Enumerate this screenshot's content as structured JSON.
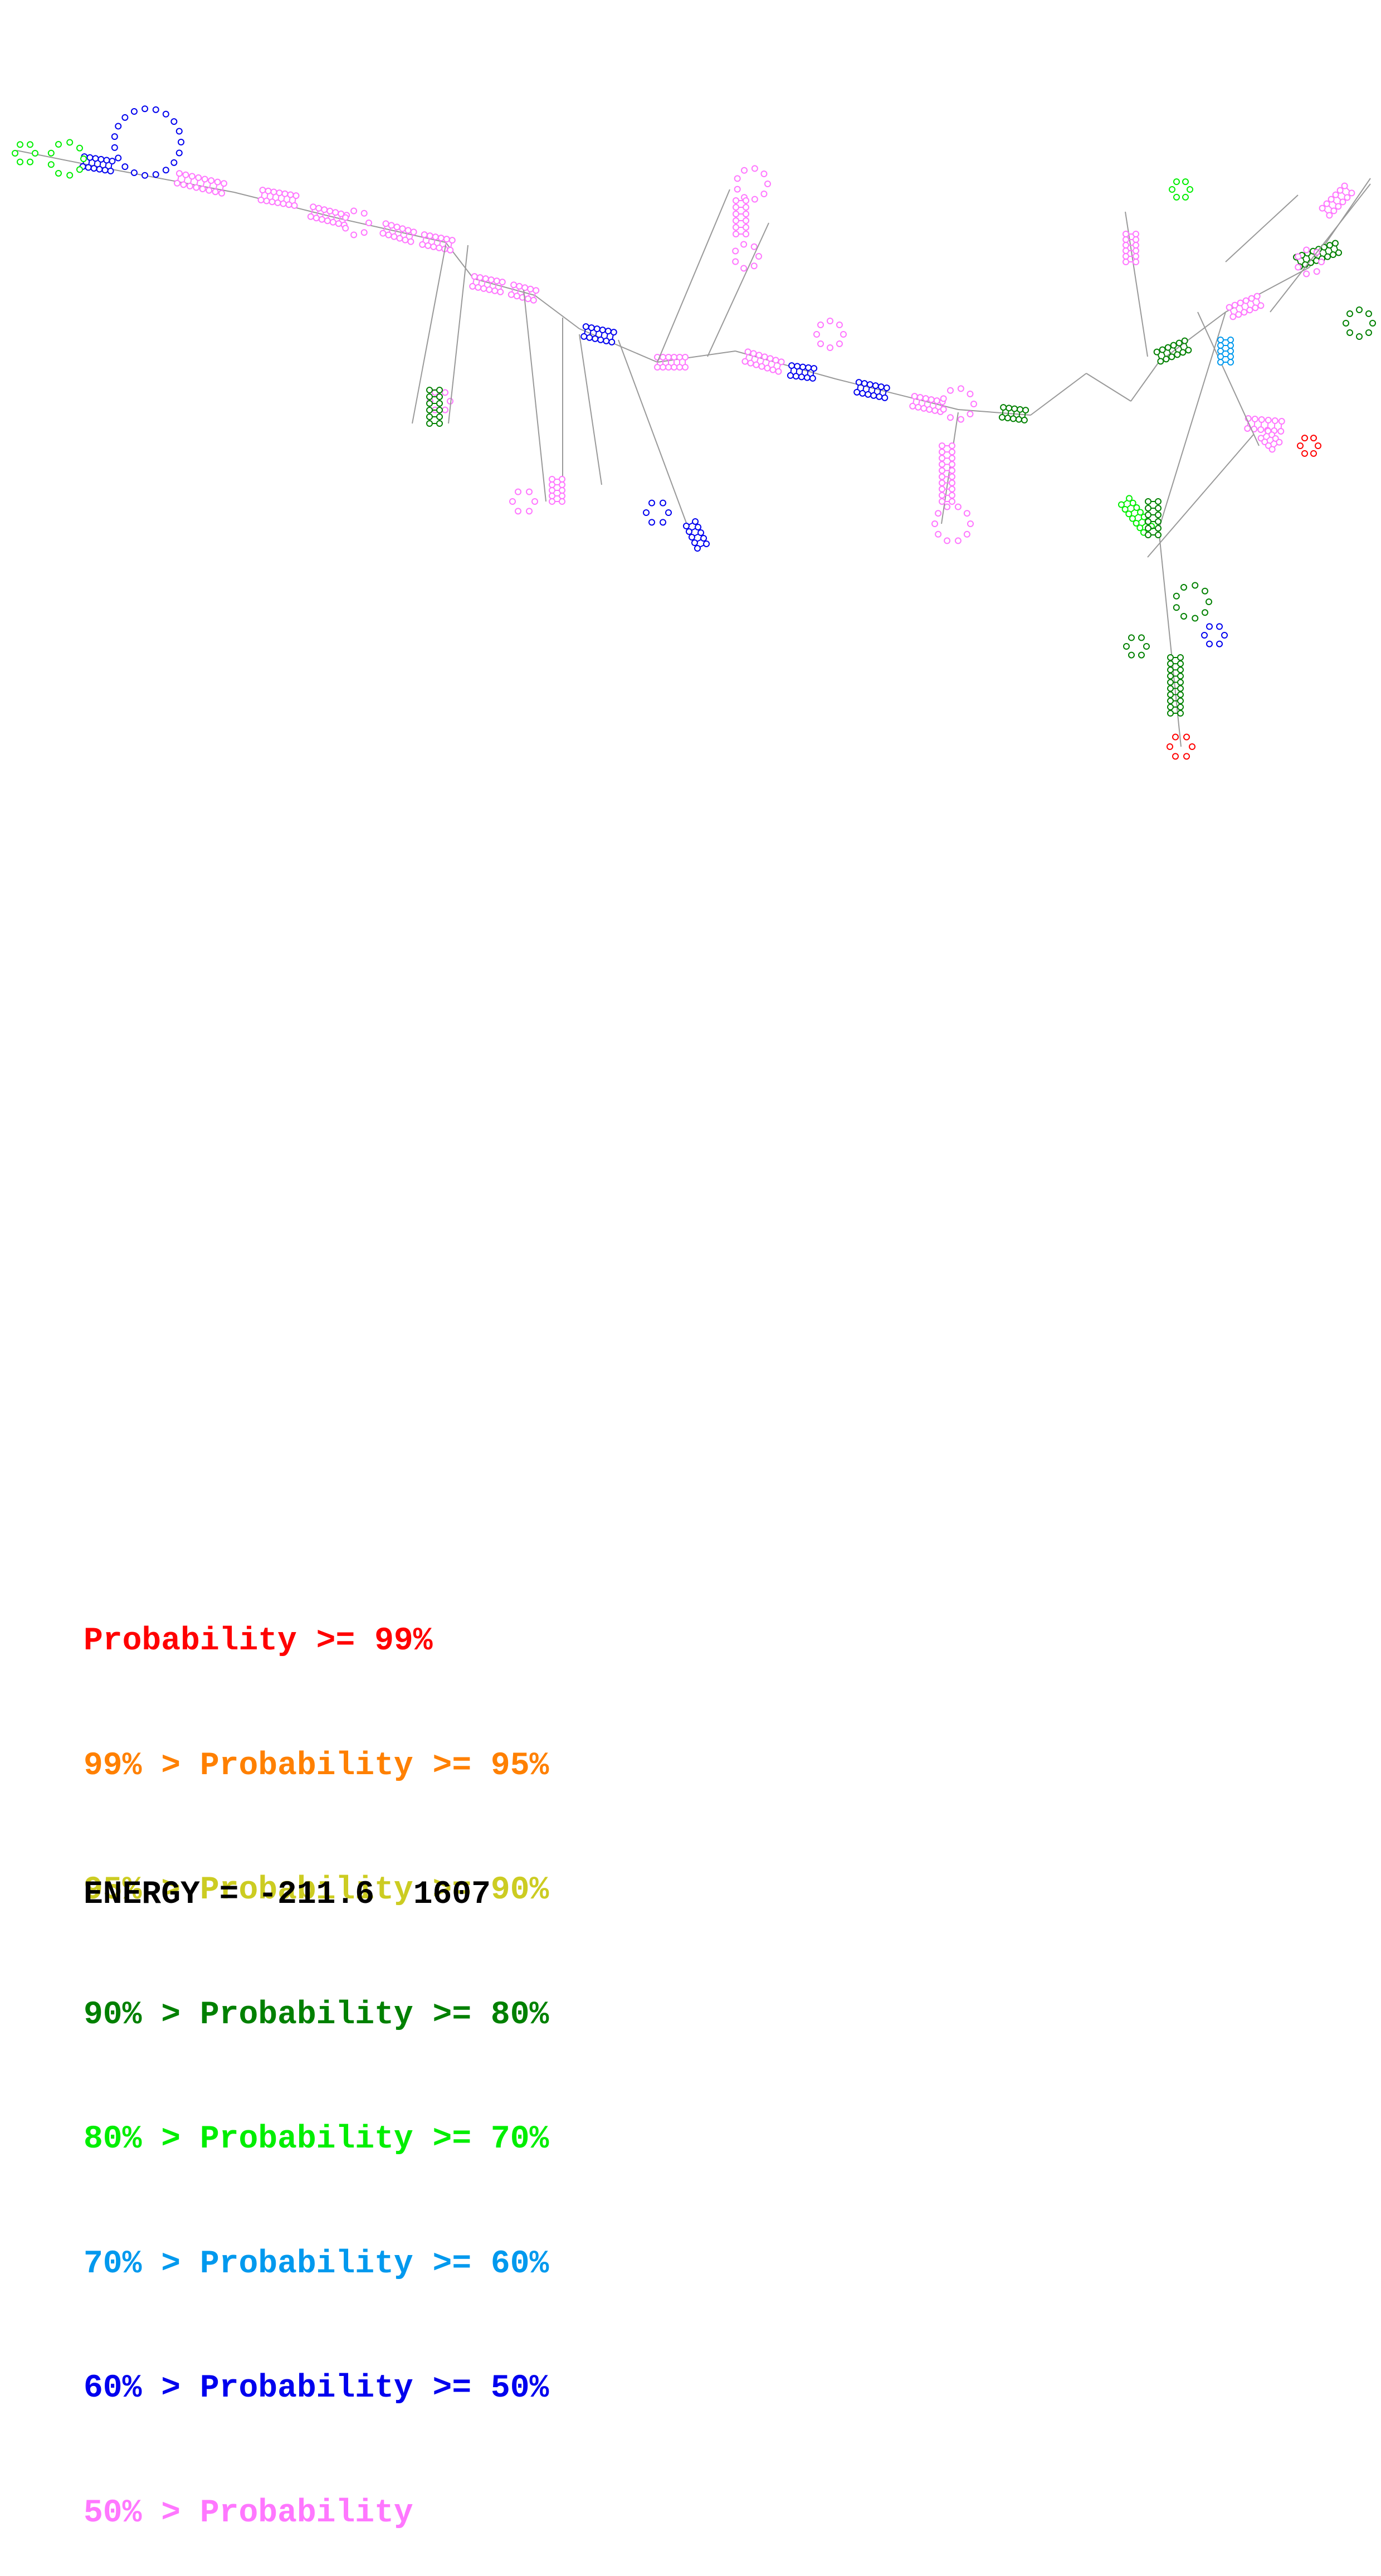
{
  "legend": {
    "rows": [
      {
        "prefix": "",
        "text": "Probability >= 99%",
        "color": "#ff0000"
      },
      {
        "prefix": "99% > ",
        "text": "Probability >= 95%",
        "color": "#ff8000"
      },
      {
        "prefix": "95% > ",
        "text": "Probability >= 90%",
        "color": "#cccc22"
      },
      {
        "prefix": "90% > ",
        "text": "Probability >= 80%",
        "color": "#008000"
      },
      {
        "prefix": "80% > ",
        "text": "Probability >= 70%",
        "color": "#00ee00"
      },
      {
        "prefix": "70% > ",
        "text": "Probability >= 60%",
        "color": "#0099ee"
      },
      {
        "prefix": "60% > ",
        "text": "Probability >= 50%",
        "color": "#0000ee"
      },
      {
        "prefix": "50% > ",
        "text": "Probability",
        "color": "#ff77ff"
      }
    ]
  },
  "energy": {
    "label": "ENERGY = -211.6  1607"
  },
  "diagram": {
    "backbone_color": "#999999",
    "base_color_default": "#cc99cc",
    "shows_base_pair_labels": false
  }
}
